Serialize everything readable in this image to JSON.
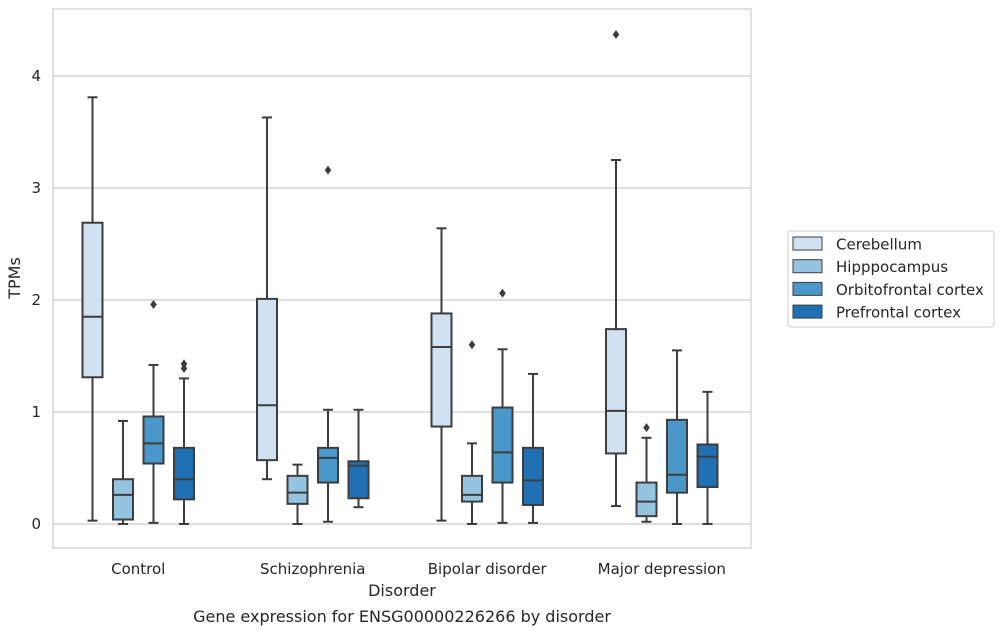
{
  "chart_data": {
    "type": "box",
    "title": "",
    "caption": "Gene expression for ENSG00000226266 by disorder",
    "xlabel": "Disorder",
    "ylabel": "TPMs",
    "ylim": [
      -0.2,
      4.6
    ],
    "yticks": [
      0,
      1,
      2,
      3,
      4
    ],
    "grid": "horizontal",
    "legend_position": "right",
    "categories": [
      "Control",
      "Schizophrenia",
      "Bipolar disorder",
      "Major depression"
    ],
    "series": [
      {
        "name": "Cerebellum",
        "color": "#d0e1f2",
        "boxes": [
          {
            "whisker_low": 0.03,
            "q1": 1.31,
            "median": 1.85,
            "q3": 2.69,
            "whisker_high": 3.81,
            "outliers": []
          },
          {
            "whisker_low": 0.4,
            "q1": 0.57,
            "median": 1.06,
            "q3": 2.01,
            "whisker_high": 3.63,
            "outliers": []
          },
          {
            "whisker_low": 0.03,
            "q1": 0.87,
            "median": 1.58,
            "q3": 1.88,
            "whisker_high": 2.64,
            "outliers": []
          },
          {
            "whisker_low": 0.16,
            "q1": 0.63,
            "median": 1.01,
            "q3": 1.74,
            "whisker_high": 3.25,
            "outliers": [
              4.37
            ]
          }
        ]
      },
      {
        "name": "Hipppocampus",
        "color": "#94c4df",
        "boxes": [
          {
            "whisker_low": 0.0,
            "q1": 0.04,
            "median": 0.26,
            "q3": 0.4,
            "whisker_high": 0.92,
            "outliers": []
          },
          {
            "whisker_low": 0.0,
            "q1": 0.18,
            "median": 0.28,
            "q3": 0.43,
            "whisker_high": 0.53,
            "outliers": []
          },
          {
            "whisker_low": 0.0,
            "q1": 0.2,
            "median": 0.26,
            "q3": 0.43,
            "whisker_high": 0.72,
            "outliers": [
              1.6
            ]
          },
          {
            "whisker_low": 0.02,
            "q1": 0.07,
            "median": 0.2,
            "q3": 0.37,
            "whisker_high": 0.77,
            "outliers": [
              0.86
            ]
          }
        ]
      },
      {
        "name": "Orbitofrontal cortex",
        "color": "#4a98c9",
        "boxes": [
          {
            "whisker_low": 0.01,
            "q1": 0.54,
            "median": 0.72,
            "q3": 0.96,
            "whisker_high": 1.42,
            "outliers": [
              1.96
            ]
          },
          {
            "whisker_low": 0.02,
            "q1": 0.37,
            "median": 0.59,
            "q3": 0.68,
            "whisker_high": 1.02,
            "outliers": [
              3.16
            ]
          },
          {
            "whisker_low": 0.01,
            "q1": 0.37,
            "median": 0.64,
            "q3": 1.04,
            "whisker_high": 1.56,
            "outliers": [
              2.06
            ]
          },
          {
            "whisker_low": 0.0,
            "q1": 0.28,
            "median": 0.44,
            "q3": 0.93,
            "whisker_high": 1.55,
            "outliers": []
          }
        ]
      },
      {
        "name": "Prefrontal cortex",
        "color": "#2070b4",
        "boxes": [
          {
            "whisker_low": 0.0,
            "q1": 0.22,
            "median": 0.4,
            "q3": 0.68,
            "whisker_high": 1.3,
            "outliers": [
              1.39,
              1.43
            ]
          },
          {
            "whisker_low": 0.15,
            "q1": 0.23,
            "median": 0.52,
            "q3": 0.56,
            "whisker_high": 1.02,
            "outliers": []
          },
          {
            "whisker_low": 0.01,
            "q1": 0.17,
            "median": 0.39,
            "q3": 0.68,
            "whisker_high": 1.34,
            "outliers": []
          },
          {
            "whisker_low": 0.0,
            "q1": 0.33,
            "median": 0.6,
            "q3": 0.71,
            "whisker_high": 1.18,
            "outliers": []
          }
        ]
      }
    ]
  }
}
